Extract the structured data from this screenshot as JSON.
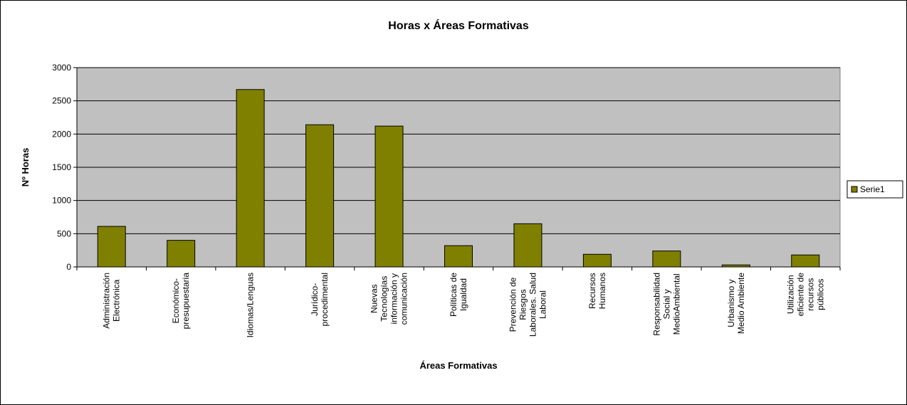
{
  "chart_data": {
    "type": "bar",
    "title": "Horas x Áreas Formativas",
    "x_label": "Áreas Formativas",
    "y_label": "Nº Horas",
    "categories": [
      "Administración\nElectrónica",
      "Económico-\npresupuestaria",
      "Idiomas/Lenguas",
      "Jurídico-\nprocedimental",
      "Nuevas\nTecnologías\ninformación y\ncomunicación",
      "Políticas de\nIgualdad",
      "Prevención de\nRiesgos\nLaborales. Salud\nLaboral",
      "Recursos\nHumanos",
      "Responsabilidad\nSocial y\nMedioAmbiental",
      "Urbanismo y\nMedio Ambiente",
      "Utilización\neficiente de\nrecursos\npúblicos"
    ],
    "series": [
      {
        "name": "Serie1",
        "color": "#808000",
        "values": [
          610,
          400,
          2670,
          2140,
          2120,
          320,
          650,
          190,
          240,
          30,
          180
        ]
      }
    ],
    "ylim": [
      0,
      3000
    ],
    "yticks": [
      0,
      500,
      1000,
      1500,
      2000,
      2500,
      3000
    ],
    "grid": true,
    "legend": "right"
  }
}
